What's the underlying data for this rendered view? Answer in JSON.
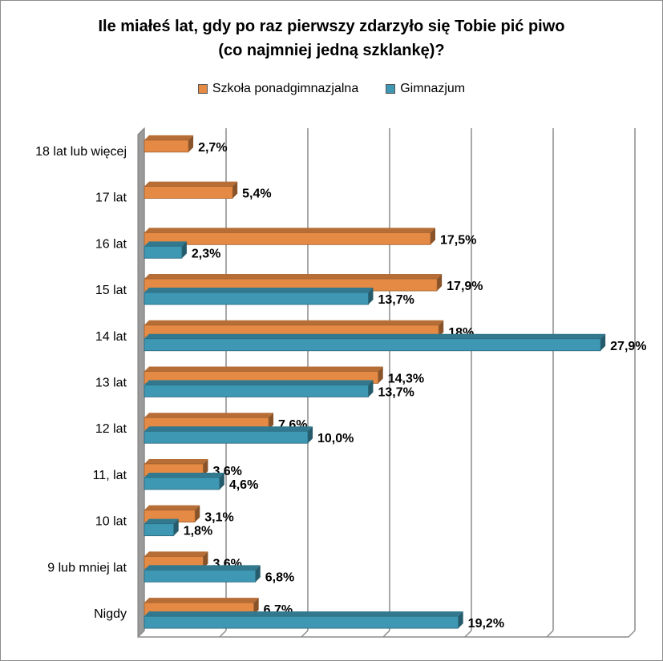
{
  "chart_data": {
    "type": "bar",
    "orientation": "horizontal",
    "title_lines": [
      "Ile miałeś lat, gdy po raz pierwszy zdarzyło się Tobie pić piwo",
      "(co najmniej jedną szklankę)?"
    ],
    "categories": [
      "18 lat lub więcej",
      "17 lat",
      "16 lat",
      "15 lat",
      "14 lat",
      "13 lat",
      "12 lat",
      "11, lat",
      "10 lat",
      "9 lub mniej lat",
      "Nigdy"
    ],
    "series": [
      {
        "name": "Szkoła ponadgimnazjalna",
        "color": "#E58A44",
        "values": [
          2.7,
          5.4,
          17.5,
          17.9,
          18,
          14.3,
          7.6,
          3.6,
          3.1,
          3.6,
          6.7
        ],
        "labels": [
          "2,7%",
          "5,4%",
          "17,5%",
          "17,9%",
          "18%",
          "14,3%",
          "7,6%",
          "3,6%",
          "3,1%",
          "3,6%",
          "6,7%"
        ]
      },
      {
        "name": "Gimnazjum",
        "color": "#3E97B3",
        "values": [
          null,
          null,
          2.3,
          13.7,
          27.9,
          13.7,
          10.0,
          4.6,
          1.8,
          6.8,
          19.2
        ],
        "labels": [
          "",
          "",
          "2,3%",
          "13,7%",
          "27,9%",
          "13,7%",
          "10,0%",
          "4,6%",
          "1,8%",
          "6,8%",
          "19,2%"
        ]
      }
    ],
    "xlim": [
      0,
      30
    ],
    "grid": true,
    "legend_position": "top"
  }
}
